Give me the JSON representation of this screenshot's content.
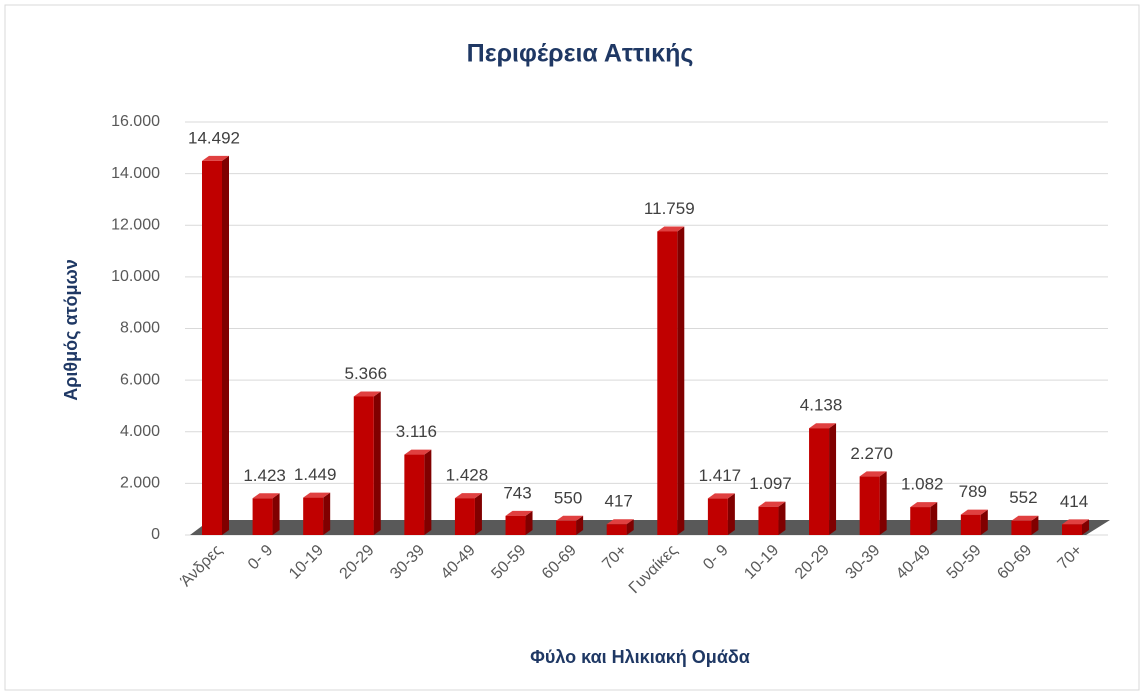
{
  "chart_data": {
    "type": "bar",
    "title": "Περιφέρεια Αττικής",
    "x_label": "Φύλο και Ηλικιακή Ομάδα",
    "y_label": "Αριθμός ατόμων",
    "categories": [
      "Άνδρες",
      "0- 9",
      "10-19",
      "20-29",
      "30-39",
      "40-49",
      "50-59",
      "60-69",
      "70+",
      "Γυναίκες",
      "0- 9",
      "10-19",
      "20-29",
      "30-39",
      "40-49",
      "50-59",
      "60-69",
      "70+"
    ],
    "values": [
      14492,
      1423,
      1449,
      5366,
      3116,
      1428,
      743,
      550,
      417,
      11759,
      1417,
      1097,
      4138,
      2270,
      1082,
      789,
      552,
      414
    ],
    "value_labels": [
      "14.492",
      "1.423",
      "1.449",
      "5.366",
      "3.116",
      "1.428",
      "743",
      "550",
      "417",
      "11.759",
      "1.417",
      "1.097",
      "4.138",
      "2.270",
      "1.082",
      "789",
      "552",
      "414"
    ],
    "color": "#c00000",
    "ylim": [
      0,
      16000
    ],
    "yticks": [
      0,
      {
        "value": 2000,
        "label": "2.000"
      },
      {
        "value": 4000,
        "label": "4.000"
      },
      {
        "value": 6000,
        "label": "6.000"
      },
      {
        "value": 8000,
        "label": "8.000"
      },
      {
        "value": 10000,
        "label": "10.000"
      },
      {
        "value": 12000,
        "label": "12.000"
      },
      {
        "value": 14000,
        "label": "14.000"
      },
      {
        "value": 16000,
        "label": "16.000"
      }
    ],
    "grid": true
  }
}
